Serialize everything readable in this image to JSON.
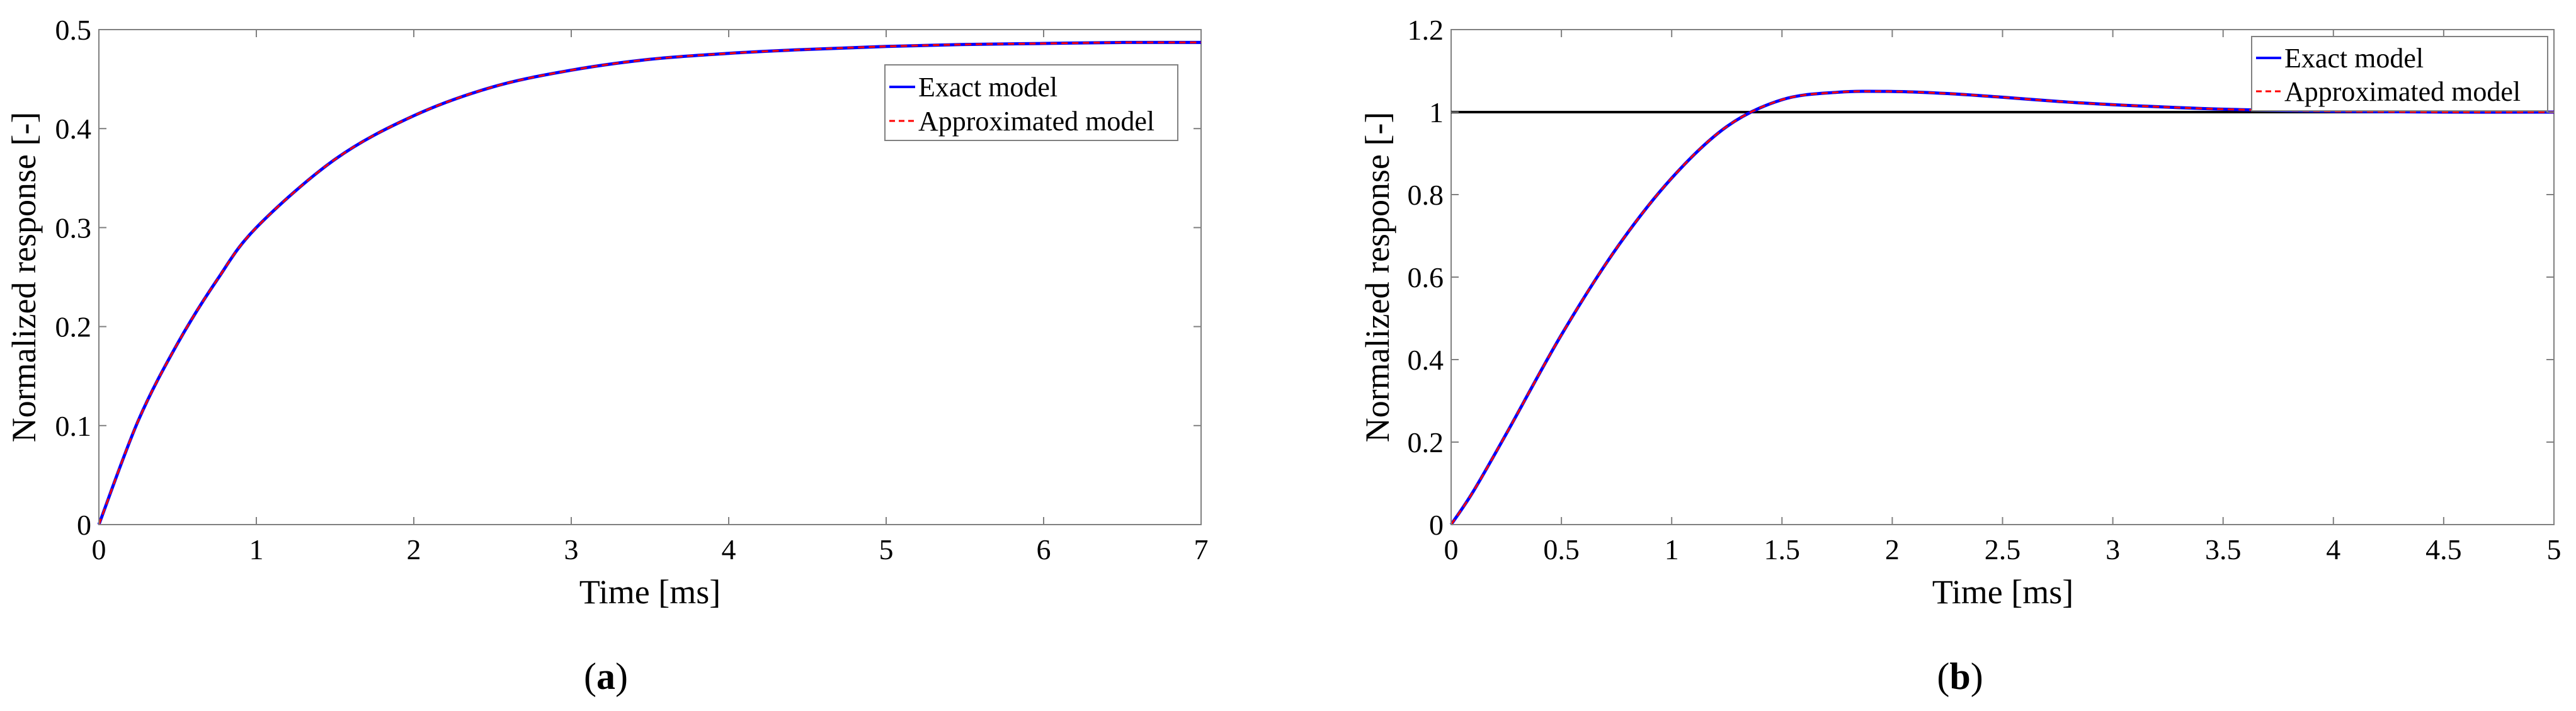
{
  "chart_data": [
    {
      "type": "line",
      "panel_label": "a",
      "xlabel": "Time [ms]",
      "ylabel": "Normalized response [-]",
      "xlim": [
        0,
        7
      ],
      "ylim": [
        0,
        0.5
      ],
      "xticks": [
        0,
        1,
        2,
        3,
        4,
        5,
        6,
        7
      ],
      "yticks": [
        0,
        0.1,
        0.2,
        0.3,
        0.4,
        0.5
      ],
      "xtick_labels": [
        "0",
        "1",
        "2",
        "3",
        "4",
        "5",
        "6",
        "7"
      ],
      "ytick_labels": [
        "0",
        "0.1",
        "0.2",
        "0.3",
        "0.4",
        "0.5"
      ],
      "grid": false,
      "legend_position": "top-right",
      "series": [
        {
          "name": "Exact model",
          "color": "#0000ff",
          "style": "solid",
          "x": [
            0,
            0.25,
            0.5,
            0.75,
            1,
            1.5,
            2,
            2.5,
            3,
            3.5,
            4,
            4.5,
            5,
            5.5,
            6,
            6.5,
            7
          ],
          "y": [
            0,
            0.105,
            0.183,
            0.247,
            0.3,
            0.369,
            0.413,
            0.442,
            0.459,
            0.47,
            0.476,
            0.48,
            0.483,
            0.485,
            0.486,
            0.487,
            0.487
          ]
        },
        {
          "name": "Approximated model",
          "color": "#ff0000",
          "style": "dashed",
          "x": [
            0,
            0.25,
            0.5,
            0.75,
            1,
            1.5,
            2,
            2.5,
            3,
            3.5,
            4,
            4.5,
            5,
            5.5,
            6,
            6.5,
            7
          ],
          "y": [
            0,
            0.105,
            0.183,
            0.247,
            0.3,
            0.369,
            0.413,
            0.442,
            0.459,
            0.47,
            0.476,
            0.48,
            0.483,
            0.485,
            0.486,
            0.487,
            0.487
          ]
        }
      ]
    },
    {
      "type": "line",
      "panel_label": "b",
      "xlabel": "Time [ms]",
      "ylabel": "Normalized response [-]",
      "xlim": [
        0,
        5
      ],
      "ylim": [
        0,
        1.2
      ],
      "xticks": [
        0,
        0.5,
        1,
        1.5,
        2,
        2.5,
        3,
        3.5,
        4,
        4.5,
        5
      ],
      "yticks": [
        0,
        0.2,
        0.4,
        0.6,
        0.8,
        1,
        1.2
      ],
      "xtick_labels": [
        "0",
        "0.5",
        "1",
        "1.5",
        "2",
        "2.5",
        "3",
        "3.5",
        "4",
        "4.5",
        "5"
      ],
      "ytick_labels": [
        "0",
        "0.2",
        "0.4",
        "0.6",
        "0.8",
        "1",
        "1.2"
      ],
      "grid": false,
      "legend_position": "top-right",
      "reference_line": {
        "y": 1,
        "color": "#000000"
      },
      "series": [
        {
          "name": "Exact model",
          "color": "#0000ff",
          "style": "solid",
          "x": [
            0,
            0.1,
            0.25,
            0.5,
            0.75,
            1,
            1.25,
            1.5,
            1.75,
            2,
            2.25,
            2.5,
            2.75,
            3,
            3.5,
            4,
            4.5,
            5
          ],
          "y": [
            0,
            0.08,
            0.22,
            0.46,
            0.67,
            0.84,
            0.965,
            1.03,
            1.048,
            1.05,
            1.045,
            1.036,
            1.026,
            1.018,
            1.007,
            1.002,
            1.0,
            1.0
          ]
        },
        {
          "name": "Approximated model",
          "color": "#ff0000",
          "style": "dashed",
          "x": [
            0,
            0.1,
            0.25,
            0.5,
            0.75,
            1,
            1.25,
            1.5,
            1.75,
            2,
            2.25,
            2.5,
            2.75,
            3,
            3.5,
            4,
            4.5,
            5
          ],
          "y": [
            0,
            0.08,
            0.22,
            0.46,
            0.67,
            0.84,
            0.965,
            1.03,
            1.048,
            1.05,
            1.045,
            1.036,
            1.026,
            1.018,
            1.007,
            1.002,
            1.0,
            1.0
          ]
        }
      ]
    }
  ]
}
